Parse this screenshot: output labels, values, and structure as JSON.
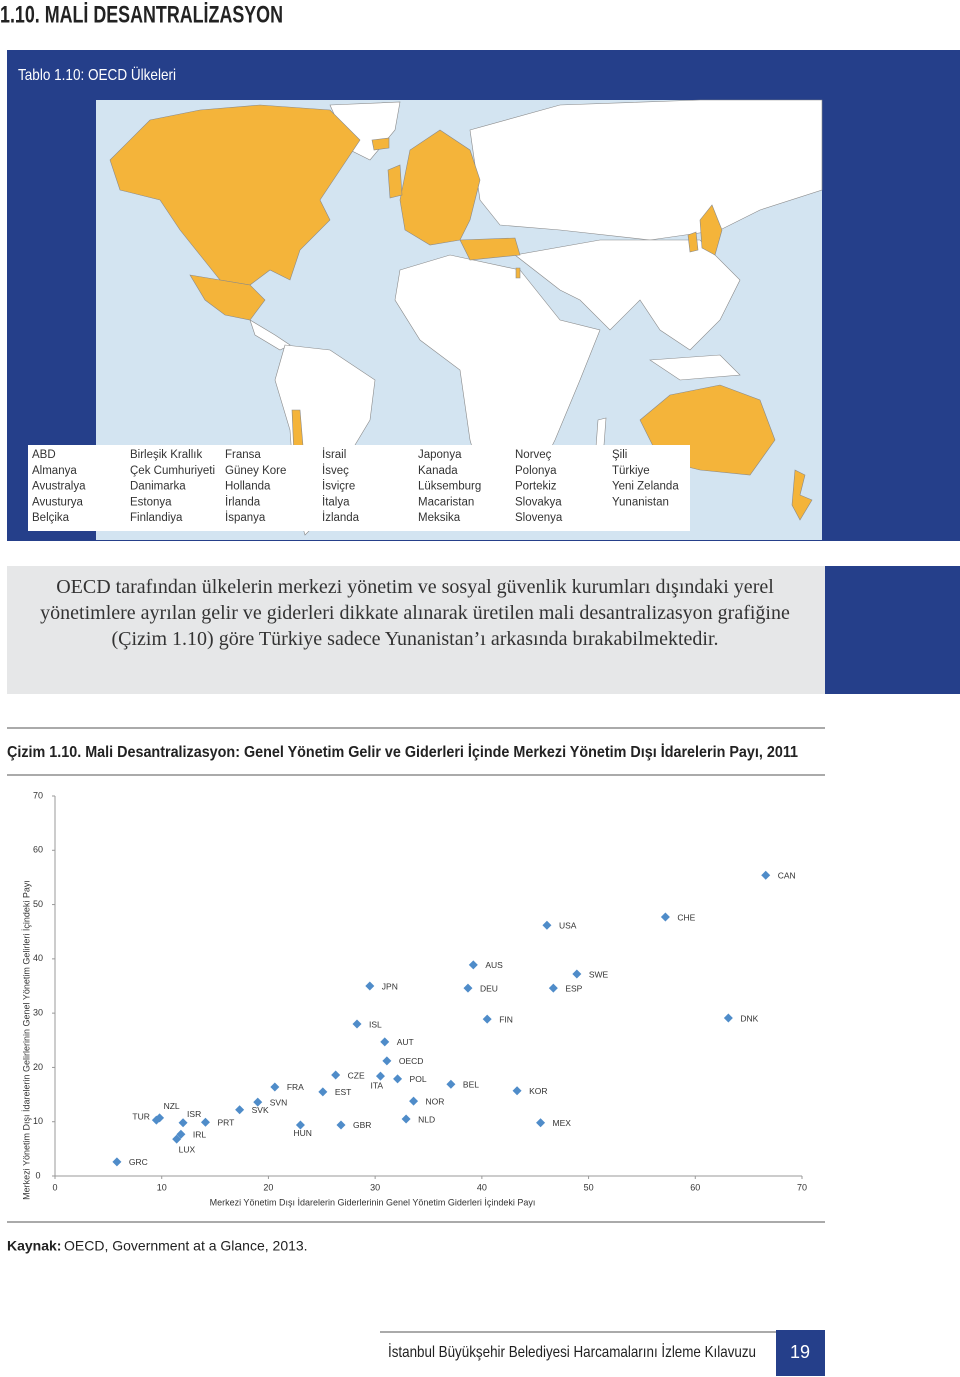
{
  "header": {
    "title": "1.10. MALİ DESANTRALİZASYON"
  },
  "map_panel": {
    "title": "Tablo 1.10: OECD Ülkeleri",
    "countries": [
      [
        "ABD",
        "Almanya",
        "Avustralya",
        "Avusturya",
        "Belçika"
      ],
      [
        "Birleşik Krallık",
        "Çek Cumhuriyeti",
        "Danimarka",
        "Estonya",
        "Finlandiya"
      ],
      [
        "Fransa",
        "Güney Kore",
        "Hollanda",
        "İrlanda",
        "İspanya"
      ],
      [
        "İsrail",
        "İsveç",
        "İsviçre",
        "İtalya",
        "İzlanda"
      ],
      [
        "Japonya",
        "Kanada",
        "Lüksemburg",
        "Macaristan",
        "Meksika"
      ],
      [
        "Norveç",
        "Polonya",
        "Portekiz",
        "Slovakya",
        "Slovenya"
      ],
      [
        "Şili",
        "Türkiye",
        "Yeni Zelanda",
        "Yunanistan"
      ]
    ]
  },
  "summary": "OECD tarafından ülkelerin merkezi yönetim ve sosyal güvenlik kurumları dışındaki yerel yönetimlere ayrılan gelir ve giderleri dikkate alınarak üretilen mali desantralizasyon grafiğine (Çizim 1.10) göre Türkiye sadece Yunanistan’ı arkasında bırakabilmektedir.",
  "chart_data": {
    "type": "scatter",
    "title": "Çizim 1.10. Mali Desantralizasyon: Genel Yönetim Gelir ve Giderleri İçinde Merkezi Yönetim Dışı İdarelerin Payı, 2011",
    "xlabel": "Merkezi Yönetim Dışı İdarelerin Giderlerinin Genel Yönetim Giderleri İçindeki Payı",
    "ylabel": "Merkezi Yönetim Dışı İdarelerin Gelirlerinin Genel Yönetim Gelirleri İçindeki Payı",
    "color": "#4f8cc9",
    "labels": [
      "GRC",
      "TUR",
      "NZL",
      "ISR",
      "IRL",
      "LUX",
      "PRT",
      "SVK",
      "SVN",
      "FRA",
      "HUN",
      "EST",
      "CZE",
      "GBR",
      "ITA",
      "ISL",
      "JPN",
      "AUT",
      "OECD",
      "POL",
      "NOR",
      "NLD",
      "BEL",
      "AUS",
      "DEU",
      "FIN",
      "KOR",
      "MEX",
      "USA",
      "ESP",
      "SWE",
      "CHE",
      "DNK",
      "CAN"
    ],
    "x": [
      5.8,
      9.5,
      9.8,
      12.0,
      11.8,
      11.4,
      14.1,
      17.3,
      19.0,
      20.6,
      23.0,
      25.1,
      26.3,
      26.8,
      30.5,
      28.3,
      29.5,
      30.9,
      31.1,
      32.1,
      33.6,
      32.9,
      37.1,
      39.2,
      38.7,
      40.5,
      43.3,
      45.5,
      46.1,
      46.7,
      48.9,
      57.2,
      63.1,
      66.6
    ],
    "y": [
      2.6,
      10.3,
      10.7,
      9.8,
      7.7,
      6.8,
      9.9,
      12.2,
      13.6,
      16.4,
      9.4,
      15.5,
      18.6,
      9.4,
      18.4,
      28.0,
      35.0,
      24.7,
      21.2,
      17.9,
      13.8,
      10.5,
      16.9,
      38.9,
      34.6,
      28.9,
      15.7,
      9.8,
      46.2,
      34.6,
      37.2,
      47.7,
      29.1,
      55.4
    ],
    "xlim": [
      0,
      70
    ],
    "ylim": [
      0,
      70
    ],
    "xticks": [
      0,
      10,
      20,
      30,
      40,
      50,
      60,
      70
    ],
    "yticks": [
      0,
      10,
      20,
      30,
      40,
      50,
      60,
      70
    ]
  },
  "source": {
    "label": "Kaynak:",
    "text": "OECD, Government at a Glance, 2013."
  },
  "footer": {
    "text": "İstanbul Büyükşehir Belediyesi Harcamalarını İzleme Kılavuzu",
    "page": 19
  }
}
